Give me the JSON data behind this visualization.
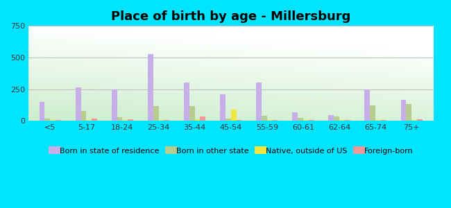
{
  "title": "Place of birth by age - Millersburg",
  "categories": [
    "<5",
    "5-17",
    "18-24",
    "25-34",
    "35-44",
    "45-54",
    "55-59",
    "60-61",
    "62-64",
    "65-74",
    "75+"
  ],
  "series": {
    "Born in state of residence": [
      150,
      265,
      245,
      525,
      300,
      210,
      300,
      65,
      45,
      250,
      165
    ],
    "Born in other state": [
      20,
      75,
      30,
      115,
      115,
      15,
      40,
      25,
      35,
      120,
      130
    ],
    "Native, outside of US": [
      5,
      5,
      5,
      5,
      10,
      90,
      5,
      5,
      5,
      5,
      5
    ],
    "Foreign-born": [
      8,
      20,
      10,
      8,
      35,
      8,
      8,
      8,
      8,
      8,
      10
    ]
  },
  "colors": {
    "Born in state of residence": "#c8aee8",
    "Born in other state": "#b8cc90",
    "Native, outside of US": "#f0e840",
    "Foreign-born": "#f09898"
  },
  "bar_width": 0.15,
  "ylim": [
    0,
    750
  ],
  "yticks": [
    0,
    250,
    500,
    750
  ],
  "outer_background": "#00e5ff",
  "bg_top_color": "#f0faf0",
  "bg_bottom_color": "#b0e8c0",
  "grid_color": "#bbbbbb",
  "title_fontsize": 13,
  "legend_fontsize": 8,
  "tick_fontsize": 8
}
